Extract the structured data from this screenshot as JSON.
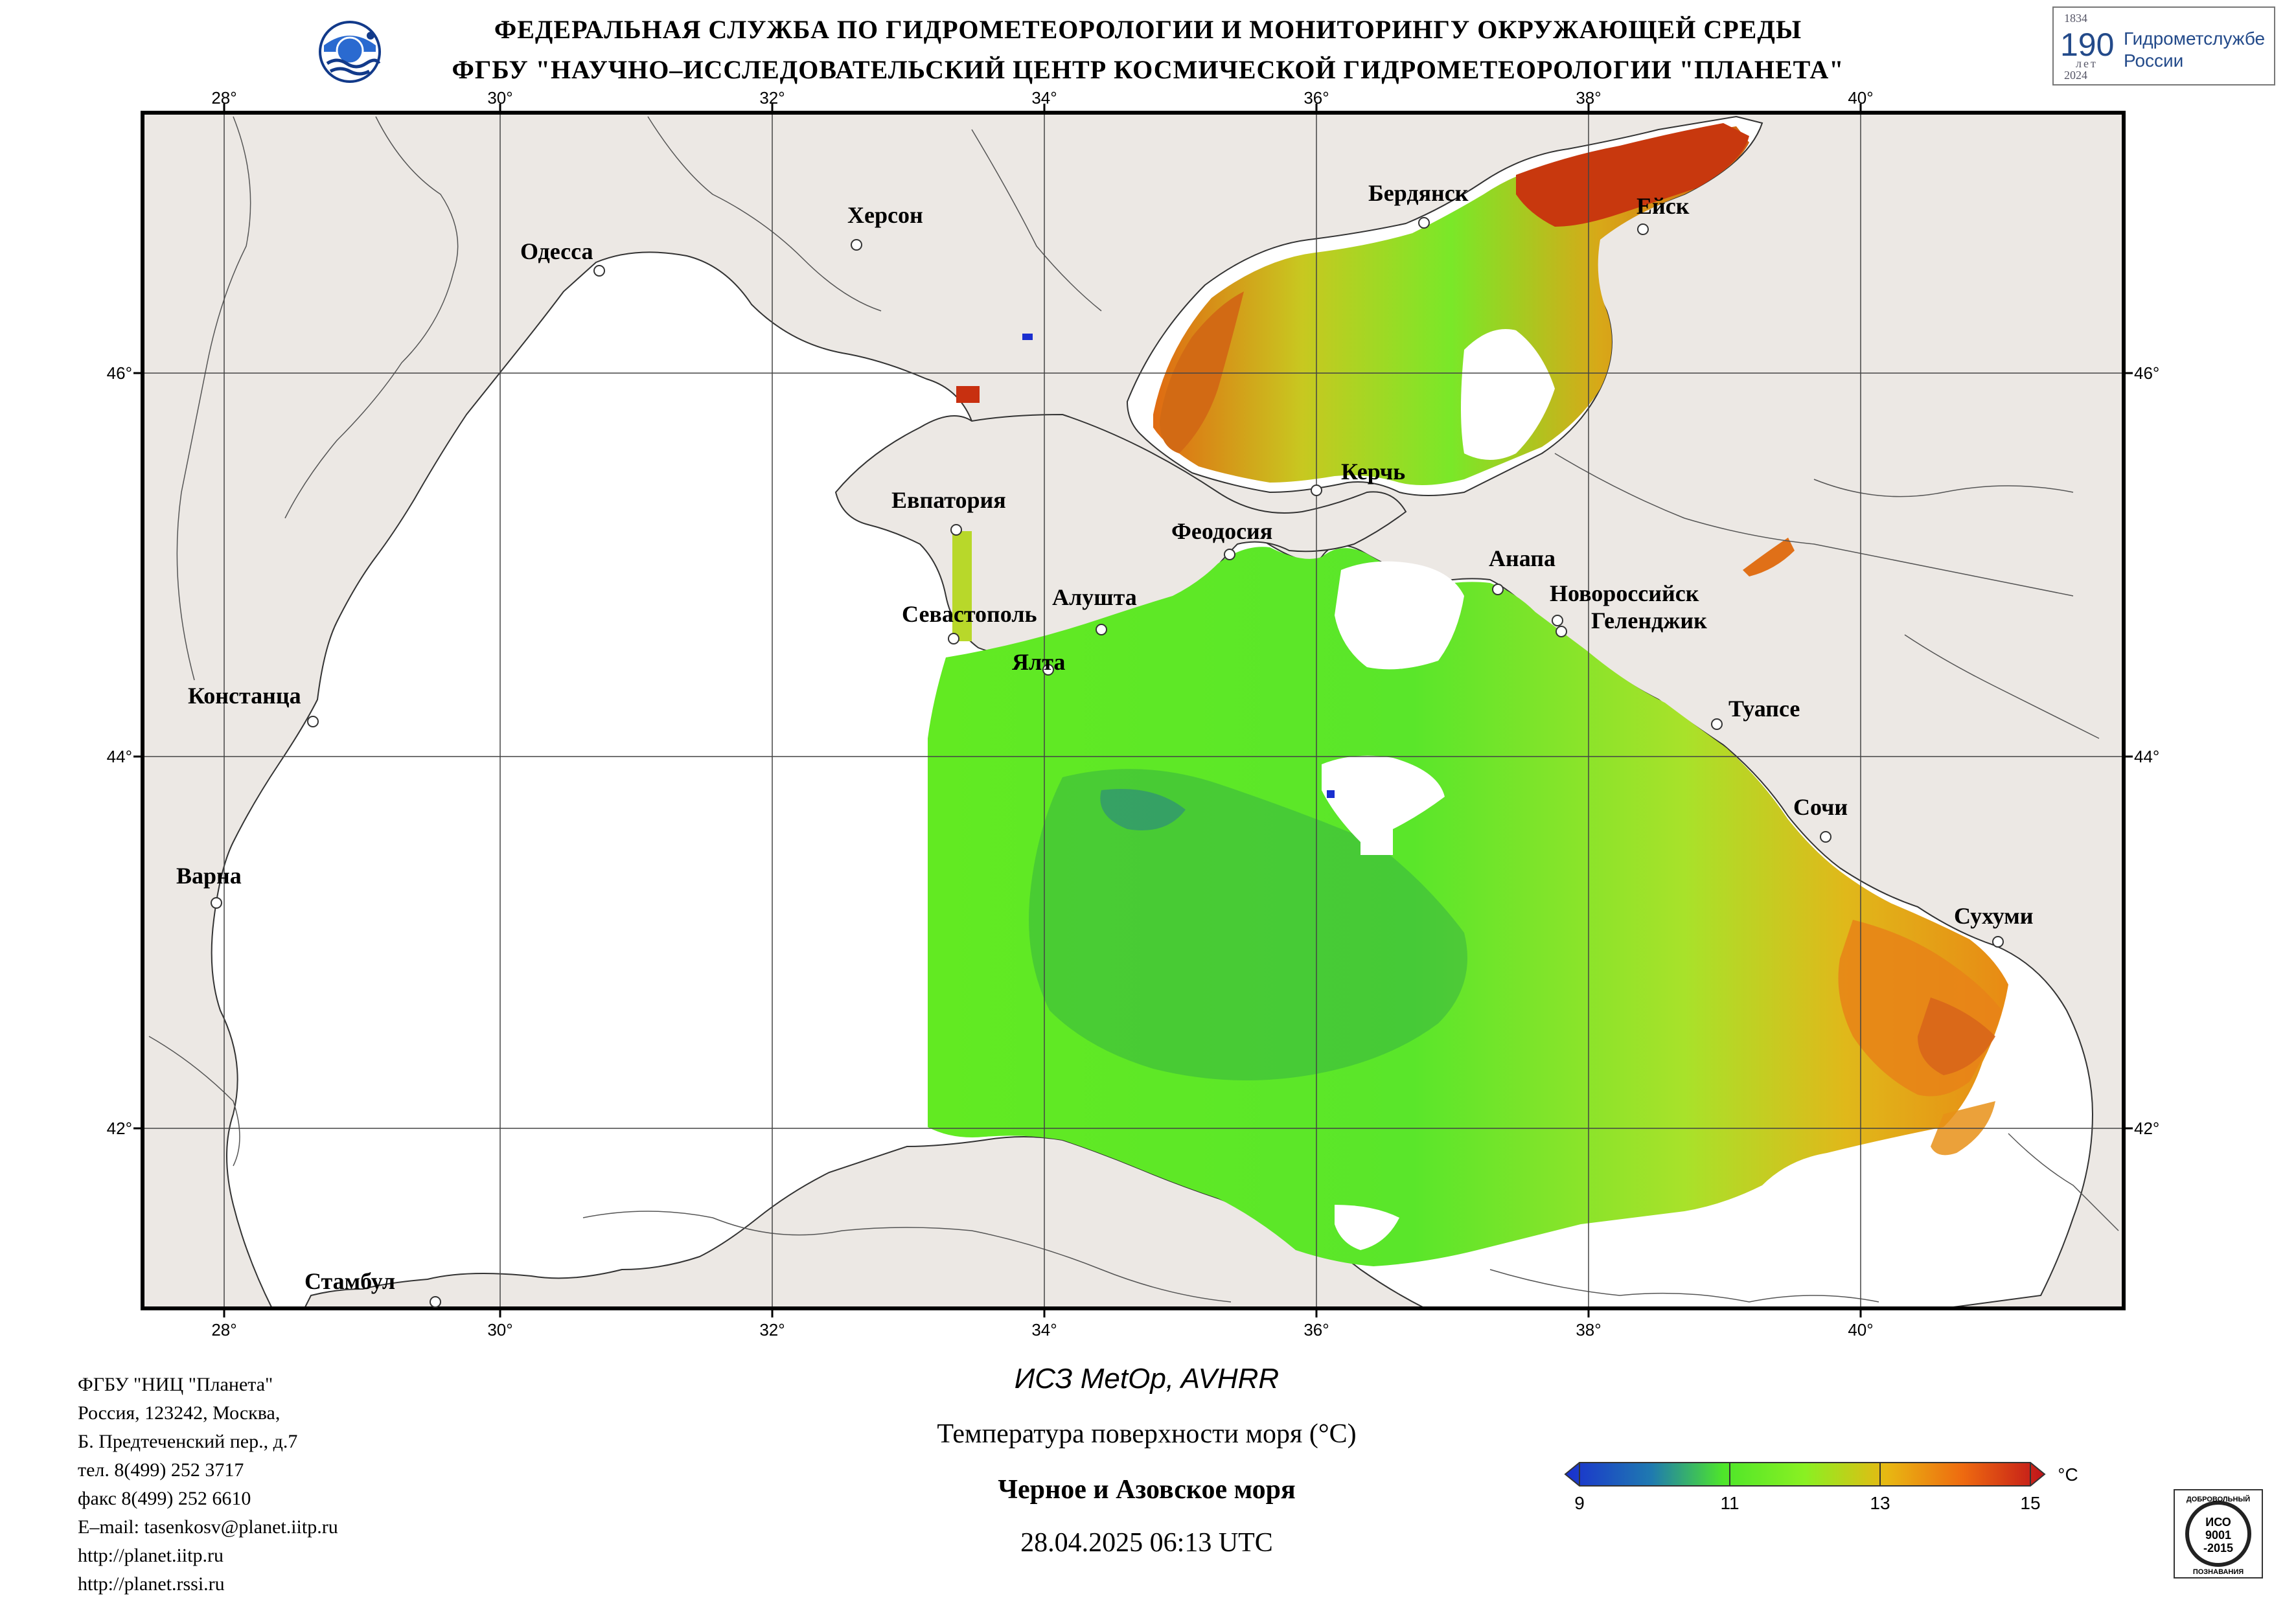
{
  "header": {
    "line1": "ФЕДЕРАЛЬНАЯ СЛУЖБА ПО ГИДРОМЕТЕОРОЛОГИИ И МОНИТОРИНГУ ОКРУЖАЮЩЕЙ СРЕДЫ",
    "line2": "ФГБУ \"НАУЧНО–ИССЛЕДОВАТЕЛЬСКИЙ ЦЕНТР КОСМИЧЕСКОЙ ГИДРОМЕТЕОРОЛОГИИ \"ПЛАНЕТА\""
  },
  "anniversary_logo": {
    "year_start": "1834",
    "number": "190",
    "word": "лет",
    "text_line1": "Гидрометслужбе",
    "text_line2": "России",
    "year_end": "2024"
  },
  "map": {
    "lon_ticks": [
      "28°",
      "30°",
      "32°",
      "34°",
      "36°",
      "38°",
      "40°"
    ],
    "lat_ticks": [
      "46°",
      "44°",
      "42°"
    ],
    "cities": [
      {
        "name": "Херсон"
      },
      {
        "name": "Одесса"
      },
      {
        "name": "Бердянск"
      },
      {
        "name": "Ейск"
      },
      {
        "name": "Керчь"
      },
      {
        "name": "Евпатория"
      },
      {
        "name": "Феодосия"
      },
      {
        "name": "Анапа"
      },
      {
        "name": "Новороссийск"
      },
      {
        "name": "Геленджик"
      },
      {
        "name": "Алушта"
      },
      {
        "name": "Севастополь"
      },
      {
        "name": "Ялта"
      },
      {
        "name": "Констанца"
      },
      {
        "name": "Туапсе"
      },
      {
        "name": "Сочи"
      },
      {
        "name": "Варна"
      },
      {
        "name": "Сухуми"
      },
      {
        "name": "Стамбул"
      }
    ],
    "colors": {
      "land": "#ece8e4",
      "sea": "#ffffff",
      "cold": "#1e3fcf",
      "mid": "#6ef020",
      "warm": "#ee7a10",
      "hot": "#c01e12"
    }
  },
  "footer": {
    "org": "ФГБУ \"НИЦ \"Планета\"",
    "address1": "Россия, 123242, Москва,",
    "address2": "Б. Предтеченский пер., д.7",
    "phone": "тел. 8(499) 252 3717",
    "fax": "факс 8(499) 252 6610",
    "email": "E–mail: tasenkosv@planet.iitp.ru",
    "url1": "http://planet.iitp.ru",
    "url2": "http://planet.rssi.ru"
  },
  "caption": {
    "satellite": "ИСЗ MetOp, AVHRR",
    "parameter": "Температура поверхности моря (°C)",
    "region": "Черное и Азовское моря",
    "datetime": "28.04.2025 06:13 UTC"
  },
  "colorbar": {
    "unit": "°C",
    "ticks": [
      "9",
      "11",
      "13",
      "15"
    ],
    "min": 9,
    "max": 15
  },
  "iso_badge": {
    "top": "ДОБРОВОЛЬНЫЙ",
    "line1": "ИСО",
    "line2": "9001",
    "line3": "-2015",
    "bottom": "ПОЗНАВАНИЯ"
  }
}
